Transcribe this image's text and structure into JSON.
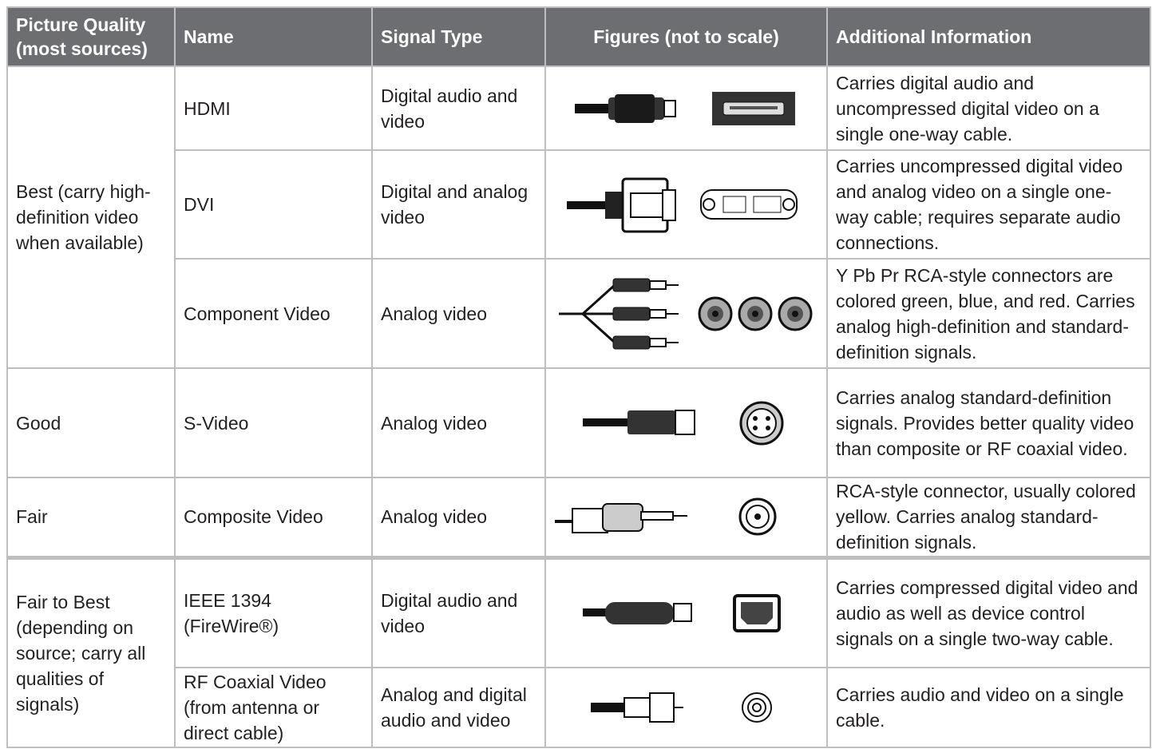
{
  "header": [
    "Picture Quality (most sources)",
    "Name",
    "Signal Type",
    "Figures (not to scale)",
    "Additional Information"
  ],
  "groups": [
    {
      "quality": "Best (carry high-definition video when available)",
      "rows": [
        {
          "name": "HDMI",
          "signal": "Digital audio and video",
          "info": "Carries digital audio and uncompressed digital video on a single one-way cable."
        },
        {
          "name": "DVI",
          "signal": "Digital and analog video",
          "info": "Carries uncompressed digital video and analog video on a single one-way cable; requires separate audio connections."
        },
        {
          "name": "Component Video",
          "signal": "Analog video",
          "info": "Y Pb Pr RCA-style connectors are colored green, blue, and red. Carries analog high-definition and standard-definition signals."
        }
      ]
    },
    {
      "quality": "Good",
      "rows": [
        {
          "name": "S-Video",
          "signal": "Analog video",
          "info": "Carries analog standard-definition signals. Provides better quality video than composite or RF coaxial video."
        }
      ]
    },
    {
      "quality": "Fair",
      "rows": [
        {
          "name": "Composite Video",
          "signal": "Analog video",
          "info": "RCA-style connector, usually colored yellow. Carries analog standard-definition signals."
        }
      ]
    },
    {
      "quality": "Fair to Best (depending on source; carry all qualities of signals)",
      "rows": [
        {
          "name": "IEEE 1394 (FireWire®)",
          "signal": "Digital audio and video",
          "info": "Carries compressed digital video and audio as well as device control signals on a single two-way cable."
        },
        {
          "name": "RF Coaxial Video (from antenna or direct cable)",
          "signal": "Analog and digital audio and video",
          "info": "Carries audio and video on a single cable."
        }
      ]
    }
  ]
}
